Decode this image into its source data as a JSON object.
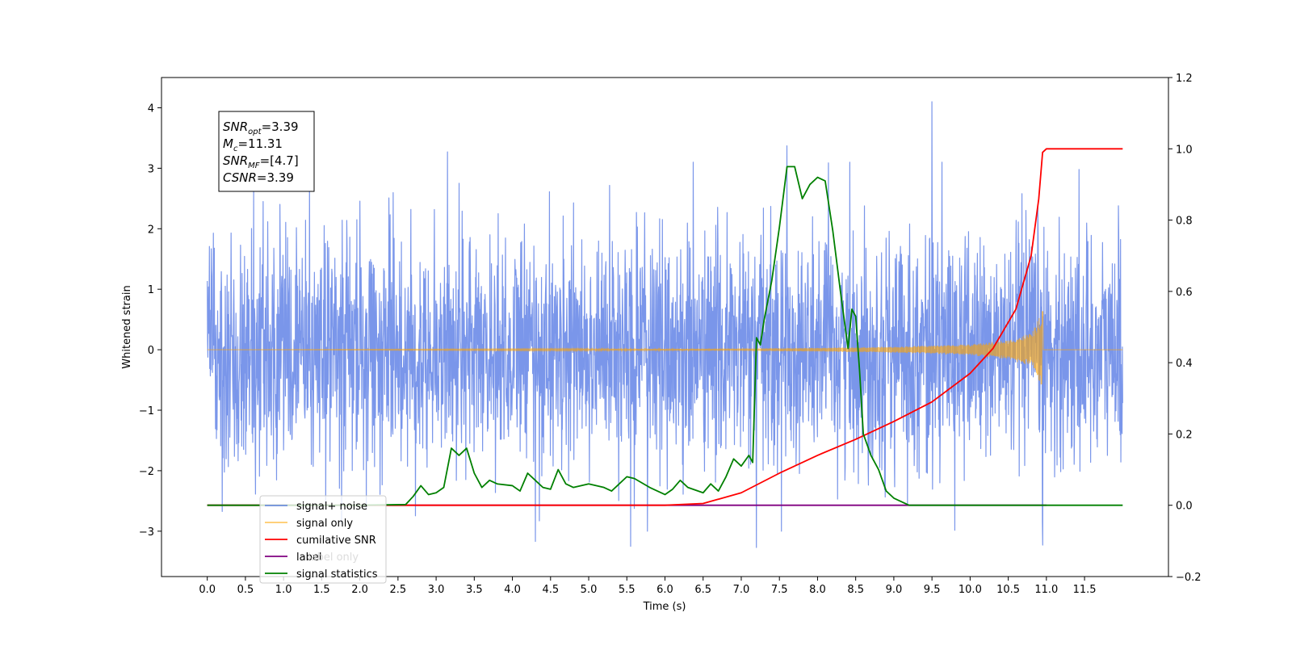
{
  "chart_data": {
    "type": "line",
    "xlabel": "Time (s)",
    "ylabel": "Whitened strain",
    "xlim": [
      -0.6,
      12.6
    ],
    "ylim": [
      -3.75,
      4.5
    ],
    "y2lim": [
      -0.2,
      1.2
    ],
    "x_ticks": [
      0.0,
      0.5,
      1.0,
      1.5,
      2.0,
      2.5,
      3.0,
      3.5,
      4.0,
      4.5,
      5.0,
      5.5,
      6.0,
      6.5,
      7.0,
      7.5,
      8.0,
      8.5,
      9.0,
      9.5,
      10.0,
      10.5,
      11.0,
      11.5
    ],
    "x_tick_labels": [
      "0.0",
      "0.5",
      "1.0",
      "1.5",
      "2.0",
      "2.5",
      "3.0",
      "3.5",
      "4.0",
      "4.5",
      "5.0",
      "5.5",
      "6.0",
      "6.5",
      "7.0",
      "7.5",
      "8.0",
      "8.5",
      "9.0",
      "9.5",
      "10.0",
      "10.5",
      "11.0",
      "11.5"
    ],
    "y_ticks": [
      -3,
      -2,
      -1,
      0,
      1,
      2,
      3,
      4
    ],
    "y_tick_labels": [
      "−3",
      "−2",
      "−1",
      "0",
      "1",
      "2",
      "3",
      "4"
    ],
    "y2_ticks": [
      -0.2,
      0.0,
      0.2,
      0.4,
      0.6,
      0.8,
      1.0,
      1.2
    ],
    "y2_tick_labels": [
      "−0.2",
      "0.0",
      "0.2",
      "0.4",
      "0.6",
      "0.8",
      "1.0",
      "1.2"
    ],
    "grid": false,
    "legend_placement": "lower-left",
    "annotation": [
      {
        "base": "SNR",
        "sub": "opt",
        "rest": "=3.39"
      },
      {
        "base": "M",
        "sub": "c",
        "rest": "=11.31"
      },
      {
        "base": "SNR",
        "sub": "MF",
        "rest": "=[4.7]"
      },
      {
        "base": "CSNR",
        "sub": "",
        "rest": "=3.39"
      }
    ],
    "series": [
      {
        "name": "signal+ noise",
        "axis": "left",
        "color": "#4169e1",
        "kind": "noise",
        "x_range": [
          0.0,
          12.0
        ],
        "amplitude_range": [
          -3.3,
          4.1
        ],
        "peaks": [
          {
            "x": 9.5,
            "y": 4.1
          },
          {
            "x": 7.6,
            "y": 3.37
          },
          {
            "x": 3.15,
            "y": 3.27
          },
          {
            "x": 7.2,
            "y": -3.27
          },
          {
            "x": 5.55,
            "y": -3.25
          },
          {
            "x": 10.95,
            "y": -3.23
          },
          {
            "x": 4.3,
            "y": -3.17
          }
        ]
      },
      {
        "name": "signal only",
        "axis": "left",
        "color": "#ffa500",
        "kind": "chirp",
        "x_range": [
          0.0,
          12.0
        ],
        "merger_time": 10.95,
        "peak_amplitude": 0.63,
        "points": [
          [
            0.0,
            0.0
          ],
          [
            7.0,
            0.02
          ],
          [
            8.0,
            0.03
          ],
          [
            9.0,
            0.05
          ],
          [
            10.0,
            0.09
          ],
          [
            10.5,
            0.16
          ],
          [
            10.8,
            0.28
          ],
          [
            10.95,
            0.63
          ],
          [
            10.96,
            0.0
          ],
          [
            12.0,
            0.0
          ]
        ]
      },
      {
        "name": "cumilative SNR",
        "axis": "right",
        "color": "#ff0000",
        "points": [
          [
            0.0,
            0.0
          ],
          [
            6.0,
            0.0
          ],
          [
            6.5,
            0.005
          ],
          [
            7.0,
            0.035
          ],
          [
            7.5,
            0.09
          ],
          [
            8.0,
            0.14
          ],
          [
            8.5,
            0.185
          ],
          [
            9.0,
            0.235
          ],
          [
            9.5,
            0.29
          ],
          [
            10.0,
            0.37
          ],
          [
            10.3,
            0.44
          ],
          [
            10.6,
            0.55
          ],
          [
            10.8,
            0.7
          ],
          [
            10.9,
            0.86
          ],
          [
            10.95,
            0.99
          ],
          [
            11.0,
            1.0
          ],
          [
            12.0,
            1.0
          ]
        ]
      },
      {
        "name": "label",
        "axis": "right",
        "color": "#800080",
        "points": [
          [
            0.0,
            0.0
          ],
          [
            11.0,
            0.0
          ]
        ]
      },
      {
        "name": "label only",
        "axis": "right",
        "color": "#ffffff",
        "points": []
      },
      {
        "name": "signal statistics",
        "axis": "right",
        "color": "#008000",
        "points": [
          [
            0.0,
            0.0
          ],
          [
            1.0,
            0.0
          ],
          [
            2.0,
            0.0
          ],
          [
            2.6,
            0.002
          ],
          [
            2.7,
            0.025
          ],
          [
            2.8,
            0.055
          ],
          [
            2.9,
            0.03
          ],
          [
            3.0,
            0.035
          ],
          [
            3.1,
            0.05
          ],
          [
            3.2,
            0.16
          ],
          [
            3.3,
            0.14
          ],
          [
            3.4,
            0.16
          ],
          [
            3.5,
            0.09
          ],
          [
            3.6,
            0.05
          ],
          [
            3.7,
            0.07
          ],
          [
            3.8,
            0.06
          ],
          [
            4.0,
            0.055
          ],
          [
            4.1,
            0.04
          ],
          [
            4.2,
            0.09
          ],
          [
            4.3,
            0.07
          ],
          [
            4.4,
            0.05
          ],
          [
            4.5,
            0.045
          ],
          [
            4.6,
            0.1
          ],
          [
            4.7,
            0.06
          ],
          [
            4.8,
            0.05
          ],
          [
            5.0,
            0.06
          ],
          [
            5.2,
            0.05
          ],
          [
            5.3,
            0.04
          ],
          [
            5.5,
            0.08
          ],
          [
            5.6,
            0.075
          ],
          [
            5.8,
            0.05
          ],
          [
            6.0,
            0.03
          ],
          [
            6.1,
            0.045
          ],
          [
            6.2,
            0.07
          ],
          [
            6.3,
            0.05
          ],
          [
            6.5,
            0.035
          ],
          [
            6.6,
            0.06
          ],
          [
            6.7,
            0.04
          ],
          [
            6.8,
            0.08
          ],
          [
            6.9,
            0.13
          ],
          [
            7.0,
            0.11
          ],
          [
            7.1,
            0.14
          ],
          [
            7.15,
            0.12
          ],
          [
            7.2,
            0.47
          ],
          [
            7.25,
            0.45
          ],
          [
            7.3,
            0.52
          ],
          [
            7.4,
            0.63
          ],
          [
            7.5,
            0.78
          ],
          [
            7.6,
            0.95
          ],
          [
            7.7,
            0.95
          ],
          [
            7.8,
            0.86
          ],
          [
            7.9,
            0.9
          ],
          [
            8.0,
            0.92
          ],
          [
            8.1,
            0.91
          ],
          [
            8.2,
            0.77
          ],
          [
            8.3,
            0.6
          ],
          [
            8.4,
            0.44
          ],
          [
            8.45,
            0.55
          ],
          [
            8.5,
            0.53
          ],
          [
            8.55,
            0.38
          ],
          [
            8.6,
            0.2
          ],
          [
            8.7,
            0.14
          ],
          [
            8.8,
            0.1
          ],
          [
            8.9,
            0.04
          ],
          [
            9.0,
            0.02
          ],
          [
            9.2,
            0.0
          ],
          [
            10.0,
            0.0
          ],
          [
            12.0,
            0.0
          ]
        ]
      }
    ]
  }
}
